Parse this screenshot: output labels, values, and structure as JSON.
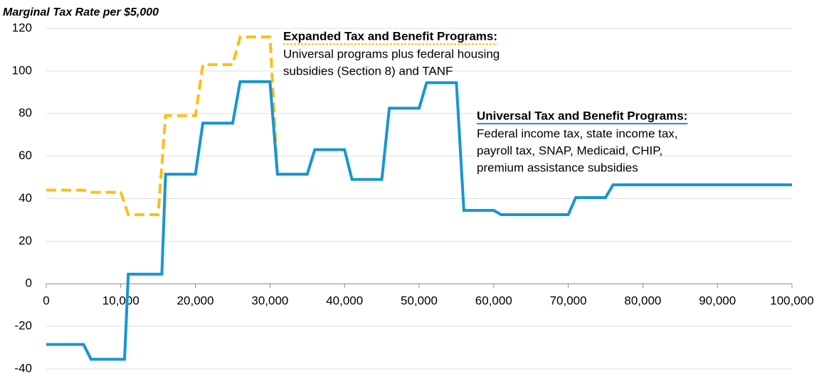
{
  "chart_data": {
    "type": "line",
    "title": "Marginal Tax Rate per $5,000",
    "xlim": [
      0,
      100000
    ],
    "xticks": [
      0,
      {
        "value": 10000,
        "label": "10,000"
      },
      {
        "value": 20000,
        "label": "20,000"
      },
      {
        "value": 30000,
        "label": "30,000"
      },
      {
        "value": 40000,
        "label": "40,000"
      },
      {
        "value": 50000,
        "label": "50,000"
      },
      {
        "value": 60000,
        "label": "60,000"
      },
      {
        "value": 70000,
        "label": "70,000"
      },
      {
        "value": 80000,
        "label": "80,000"
      },
      {
        "value": 90000,
        "label": "90,000"
      },
      {
        "value": 100000,
        "label": "100,000"
      }
    ],
    "ylim": [
      -40,
      120
    ],
    "yticks": [
      -40,
      -20,
      0,
      20,
      40,
      60,
      80,
      100,
      120
    ],
    "grid": true,
    "series": [
      {
        "name": "Universal Tax and Benefit Programs",
        "color": "#1696d2",
        "dashed": false,
        "x": [
          0,
          5000,
          6000,
          10500,
          11000,
          15500,
          16000,
          20000,
          21000,
          25000,
          26000,
          30000,
          31000,
          35000,
          36000,
          40000,
          41000,
          45000,
          46000,
          50000,
          51000,
          55000,
          56000,
          60000,
          61000,
          70000,
          71000,
          75000,
          76000,
          100000
        ],
        "values": [
          -28.5,
          -28.5,
          -35.5,
          -35.5,
          4.5,
          4.5,
          51.5,
          51.5,
          75.5,
          75.5,
          95,
          95,
          51.5,
          51.5,
          63,
          63,
          49,
          49,
          82.5,
          82.5,
          94.5,
          94.5,
          34.5,
          34.5,
          32.5,
          32.5,
          40.5,
          40.5,
          46.5,
          46.5
        ]
      },
      {
        "name": "Expanded Tax and Benefit Programs",
        "color": "#fdbf11",
        "dashed": true,
        "x": [
          0,
          5000,
          6000,
          10000,
          11000,
          15000,
          16000,
          20000,
          21000,
          25000,
          26000,
          30000,
          31000
        ],
        "values": [
          44,
          44,
          43,
          43,
          32.5,
          32.5,
          79,
          79,
          103,
          103,
          116,
          116,
          51.5
        ]
      }
    ],
    "annotations": [
      {
        "title": "Expanded Tax and Benefit Programs:",
        "lines": [
          "Universal programs plus federal housing",
          "subsidies (Section 8) and TANF"
        ]
      },
      {
        "title": "Universal Tax and Benefit Programs:",
        "lines": [
          "Federal income tax, state income tax,",
          "payroll tax, SNAP, Medicaid, CHIP,",
          "premium assistance subsidies"
        ]
      }
    ]
  }
}
